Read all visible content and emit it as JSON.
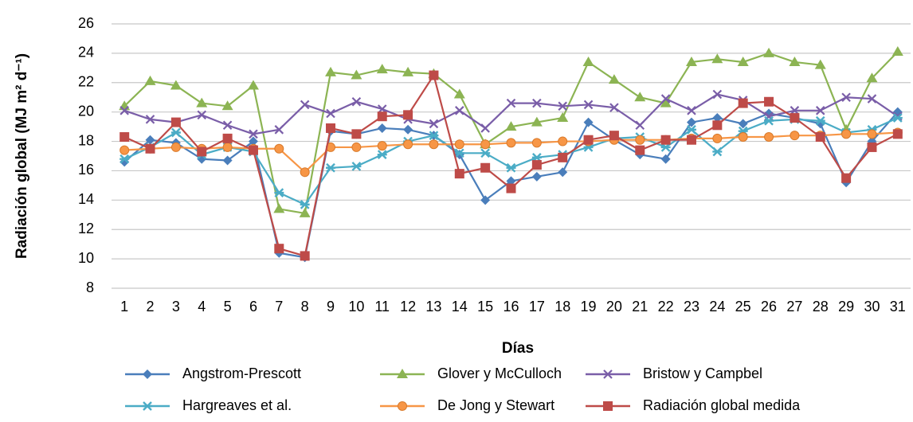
{
  "chart_data": {
    "type": "line",
    "y_label": "Radiación global (MJ m² d⁻¹)",
    "x_label": "Días",
    "categories": [
      "1",
      "2",
      "3",
      "4",
      "5",
      "6",
      "7",
      "8",
      "9",
      "10",
      "11",
      "12",
      "13",
      "14",
      "15",
      "16",
      "17",
      "18",
      "19",
      "20",
      "21",
      "22",
      "23",
      "24",
      "25",
      "26",
      "27",
      "28",
      "29",
      "30",
      "31"
    ],
    "ylim": [
      8,
      26
    ],
    "yticks": [
      8,
      10,
      12,
      14,
      16,
      18,
      20,
      22,
      24,
      26
    ],
    "grid": true,
    "legend": "bottom",
    "series": [
      {
        "name": "Angstrom-Prescott",
        "color": "#4a7ebb",
        "marker": "diamond",
        "values": [
          16.6,
          18.1,
          17.9,
          16.8,
          16.7,
          18.0,
          10.4,
          10.1,
          18.7,
          18.5,
          18.9,
          18.8,
          18.4,
          17.1,
          14.0,
          15.3,
          15.6,
          15.9,
          19.3,
          18.1,
          17.1,
          16.8,
          19.3,
          19.6,
          19.2,
          19.9,
          19.6,
          19.2,
          15.2,
          18.0,
          20.0
        ]
      },
      {
        "name": "Glover y McCulloch",
        "color": "#8cb453",
        "marker": "triangle",
        "values": [
          20.4,
          22.1,
          21.8,
          20.6,
          20.4,
          21.8,
          13.4,
          13.1,
          22.7,
          22.5,
          22.9,
          22.7,
          22.6,
          21.2,
          17.8,
          19.0,
          19.3,
          19.6,
          23.4,
          22.2,
          21.0,
          20.6,
          23.4,
          23.6,
          23.4,
          24.0,
          23.4,
          23.2,
          18.8,
          22.3,
          24.1
        ]
      },
      {
        "name": "Bristow y Campbel",
        "color": "#7a5ea8",
        "marker": "x",
        "values": [
          20.1,
          19.5,
          19.3,
          19.8,
          19.1,
          18.5,
          18.8,
          20.5,
          19.9,
          20.7,
          20.2,
          19.5,
          19.2,
          20.1,
          18.9,
          20.6,
          20.6,
          20.4,
          20.5,
          20.3,
          19.1,
          20.9,
          20.1,
          21.2,
          20.8,
          19.7,
          20.1,
          20.1,
          21.0,
          20.9,
          19.7
        ]
      },
      {
        "name": "Hargreaves et al.",
        "color": "#4bacc6",
        "marker": "star",
        "values": [
          16.8,
          17.6,
          18.6,
          17.1,
          17.6,
          17.3,
          14.5,
          13.7,
          16.2,
          16.3,
          17.1,
          18.0,
          18.4,
          17.2,
          17.2,
          16.2,
          16.9,
          17.1,
          17.6,
          18.2,
          18.3,
          17.6,
          18.8,
          17.3,
          18.7,
          19.4,
          19.5,
          19.4,
          18.6,
          18.8,
          19.6
        ]
      },
      {
        "name": "De Jong y Stewart",
        "color": "#f79646",
        "marker": "circle",
        "values": [
          17.4,
          17.5,
          17.6,
          17.5,
          17.6,
          17.5,
          17.5,
          15.9,
          17.6,
          17.6,
          17.7,
          17.8,
          17.8,
          17.8,
          17.8,
          17.9,
          17.9,
          18.0,
          18.0,
          18.1,
          18.1,
          18.1,
          18.2,
          18.2,
          18.3,
          18.3,
          18.4,
          18.4,
          18.5,
          18.5,
          18.6
        ]
      },
      {
        "name": "Radiación global medida",
        "color": "#be4b48",
        "marker": "square",
        "values": [
          18.3,
          17.5,
          19.3,
          17.3,
          18.2,
          17.4,
          10.7,
          10.2,
          18.9,
          18.5,
          19.7,
          19.8,
          22.5,
          15.8,
          16.2,
          14.8,
          16.4,
          16.9,
          18.1,
          18.4,
          17.4,
          18.1,
          18.1,
          19.1,
          20.6,
          20.7,
          19.6,
          18.3,
          15.5,
          17.6,
          18.5
        ]
      }
    ]
  }
}
